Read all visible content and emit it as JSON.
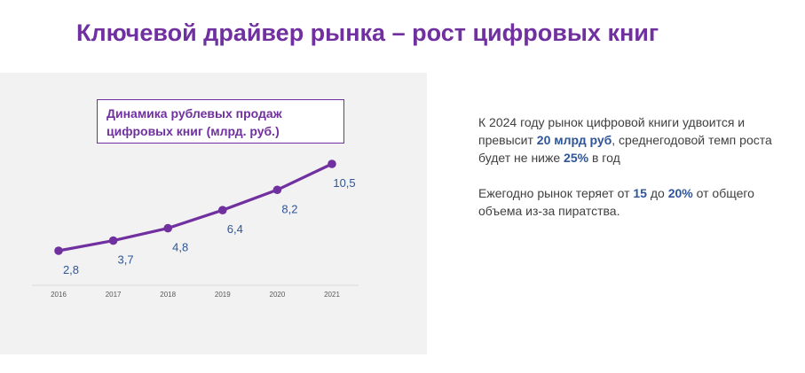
{
  "page": {
    "title": "Ключевой драйвер рынка – рост цифровых книг"
  },
  "chart_data": {
    "type": "line",
    "title": "Динамика рублевых продаж цифровых книг (млрд. руб.)",
    "categories": [
      "2016",
      "2017",
      "2018",
      "2019",
      "2020",
      "2021"
    ],
    "series": [
      {
        "values": [
          2.8,
          3.7,
          4.8,
          6.4,
          8.2,
          10.5
        ]
      }
    ],
    "data_labels": [
      "2,8",
      "3,7",
      "4,8",
      "6,4",
      "8,2",
      "10,5"
    ],
    "line_color": "#7030a0",
    "label_color": "#2f5597",
    "grid": false
  },
  "text": {
    "p1_a": "К 2024 году рынок цифровой книги удвоится и превысит ",
    "p1_b": "20 млрд руб",
    "p1_c": ", среднегодовой темп роста будет не ниже ",
    "p1_d": "25%",
    "p1_e": " в год",
    "p2_a": "Ежегодно рынок теряет от ",
    "p2_b": "15",
    "p2_c": " до ",
    "p2_d": "20%",
    "p2_e": " от общего объема из-за пиратства."
  },
  "colors": {
    "accent": "#7030a0",
    "highlight": "#2f5597",
    "panel_bg": "#f2f2f2"
  }
}
